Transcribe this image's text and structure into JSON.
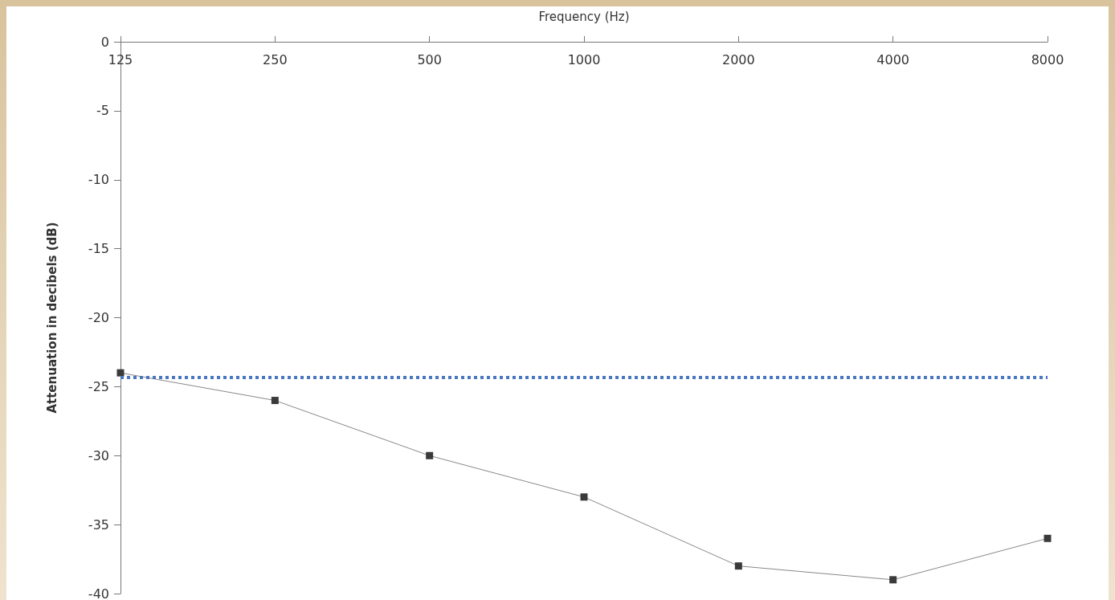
{
  "chart_data": {
    "type": "line",
    "xlabel": "Frequency (Hz)",
    "ylabel": "Attenuation in decibels (dB)",
    "categories": [
      "125",
      "250",
      "500",
      "1000",
      "2000",
      "4000",
      "8000"
    ],
    "series": [
      {
        "color": "#3a3a3a",
        "values": [
          -24,
          -26,
          -30,
          -33,
          -38,
          -39,
          -36
        ]
      }
    ],
    "ylim": [
      -40,
      0
    ],
    "yticks": [
      0,
      -5,
      -10,
      -15,
      -20,
      -25,
      -30,
      -35,
      -40
    ],
    "ref_lines": [
      {
        "axis": "y",
        "value": -24.3,
        "color": "#4a78c0",
        "line_style": "dotted"
      }
    ],
    "grid": false,
    "marker": "square",
    "line_style": "solid"
  }
}
